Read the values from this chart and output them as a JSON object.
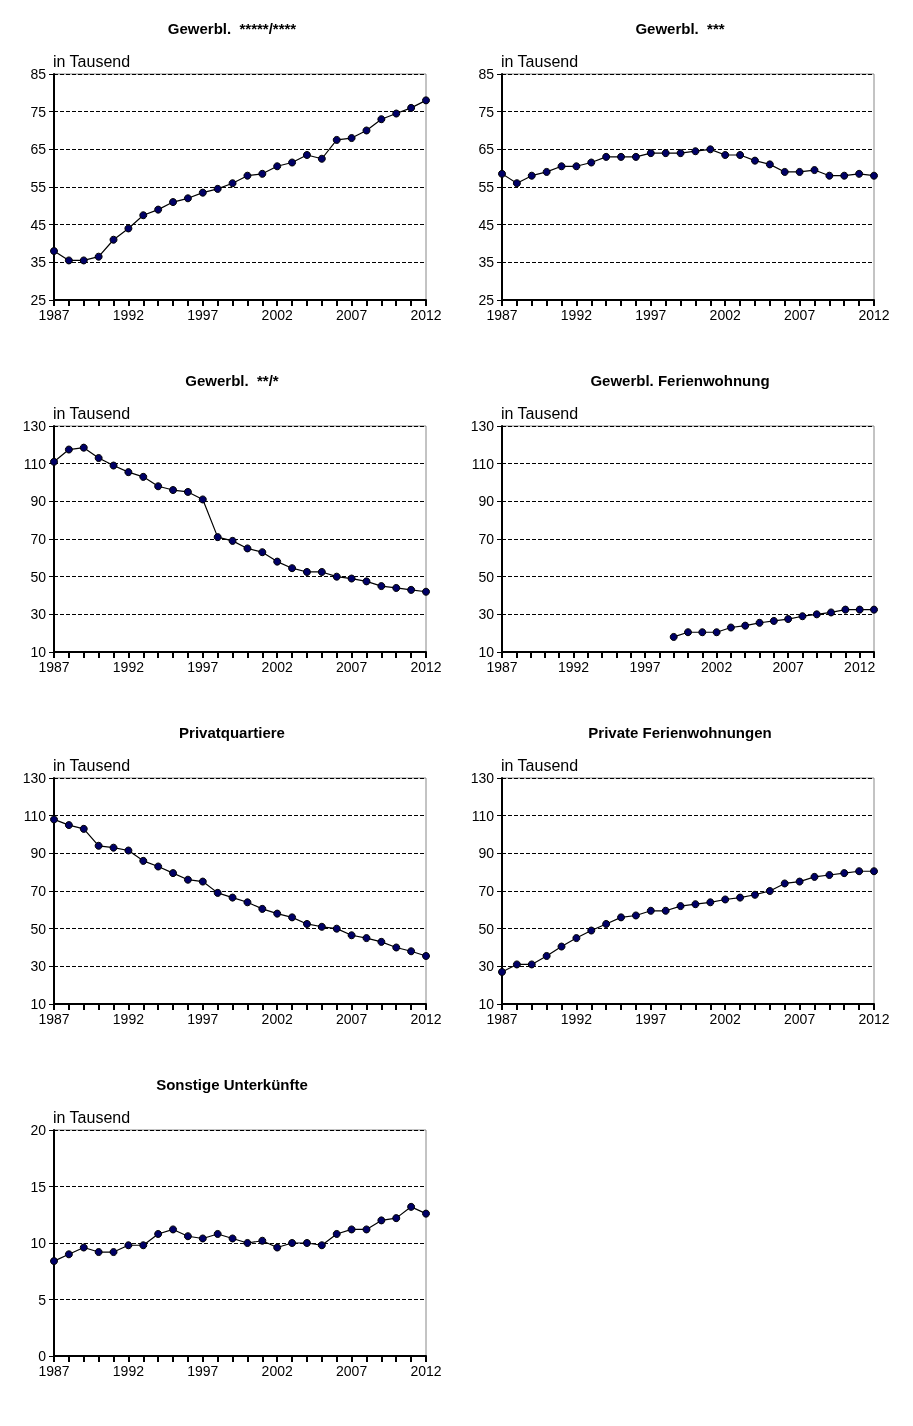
{
  "chart_data": [
    {
      "type": "line",
      "title": "Gewerbl.  *****/****",
      "ylabel": "in Tausend",
      "x": [
        1987,
        1988,
        1989,
        1990,
        1991,
        1992,
        1993,
        1994,
        1995,
        1996,
        1997,
        1998,
        1999,
        2000,
        2001,
        2002,
        2003,
        2004,
        2005,
        2006,
        2007,
        2008,
        2009,
        2010,
        2011,
        2012
      ],
      "values": [
        38,
        35.5,
        35.5,
        36.5,
        41,
        44,
        47.5,
        49,
        51,
        52,
        53.5,
        54.5,
        56,
        58,
        58.5,
        60.5,
        61.5,
        63.5,
        62.5,
        67.5,
        68,
        70,
        73,
        74.5,
        76,
        78
      ],
      "color": "#000066",
      "xlim": [
        1987,
        2012
      ],
      "xticks": [
        1987,
        1992,
        1997,
        2002,
        2007,
        2012
      ],
      "ylim": [
        25,
        85
      ],
      "yticks": [
        25,
        35,
        45,
        55,
        65,
        75,
        85
      ],
      "grid": "y",
      "marker": "circle"
    },
    {
      "type": "line",
      "title": "Gewerbl.  ***",
      "ylabel": "in Tausend",
      "x": [
        1987,
        1988,
        1989,
        1990,
        1991,
        1992,
        1993,
        1994,
        1995,
        1996,
        1997,
        1998,
        1999,
        2000,
        2001,
        2002,
        2003,
        2004,
        2005,
        2006,
        2007,
        2008,
        2009,
        2010,
        2011,
        2012
      ],
      "values": [
        58.5,
        56,
        58,
        59,
        60.5,
        60.5,
        61.5,
        63,
        63,
        63,
        64,
        64,
        64,
        64.5,
        65,
        63.5,
        63.5,
        62,
        61,
        59,
        59,
        59.5,
        58,
        58,
        58.5,
        58
      ],
      "color": "#000066",
      "xlim": [
        1987,
        2012
      ],
      "xticks": [
        1987,
        1992,
        1997,
        2002,
        2007,
        2012
      ],
      "ylim": [
        25,
        85
      ],
      "yticks": [
        25,
        35,
        45,
        55,
        65,
        75,
        85
      ],
      "grid": "y",
      "marker": "circle"
    },
    {
      "type": "line",
      "title": "Gewerbl.  **/*",
      "ylabel": "in Tausend",
      "x": [
        1987,
        1988,
        1989,
        1990,
        1991,
        1992,
        1993,
        1994,
        1995,
        1996,
        1997,
        1998,
        1999,
        2000,
        2001,
        2002,
        2003,
        2004,
        2005,
        2006,
        2007,
        2008,
        2009,
        2010,
        2011,
        2012
      ],
      "values": [
        111,
        117.5,
        118.5,
        113,
        109,
        105.5,
        103,
        98,
        96,
        95,
        91,
        71,
        69,
        65,
        63,
        58,
        54.5,
        52.5,
        52.5,
        50,
        49,
        47.5,
        45,
        44,
        43,
        42
      ],
      "color": "#000066",
      "xlim": [
        1987,
        2012
      ],
      "xticks": [
        1987,
        1992,
        1997,
        2002,
        2007,
        2012
      ],
      "ylim": [
        10,
        130
      ],
      "yticks": [
        10,
        30,
        50,
        70,
        90,
        110,
        130
      ],
      "grid": "y",
      "marker": "circle"
    },
    {
      "type": "line",
      "title": "Gewerbl. Ferienwohnung",
      "ylabel": "in Tausend",
      "x": [
        1999,
        2000,
        2001,
        2002,
        2003,
        2004,
        2005,
        2006,
        2007,
        2008,
        2009,
        2010,
        2011,
        2012,
        2013
      ],
      "values": [
        18,
        20.5,
        20.5,
        20.5,
        23,
        24,
        25.5,
        26.5,
        27.5,
        29,
        30,
        31,
        32.5,
        32.5,
        32.5
      ],
      "color": "#000066",
      "xlim": [
        1987,
        2013
      ],
      "xticks": [
        1987,
        1992,
        1997,
        2002,
        2007,
        2012
      ],
      "ylim": [
        10,
        130
      ],
      "yticks": [
        10,
        30,
        50,
        70,
        90,
        110,
        130
      ],
      "grid": "y",
      "marker": "circle"
    },
    {
      "type": "line",
      "title": "Privatquartiere",
      "ylabel": "in Tausend",
      "x": [
        1987,
        1988,
        1989,
        1990,
        1991,
        1992,
        1993,
        1994,
        1995,
        1996,
        1997,
        1998,
        1999,
        2000,
        2001,
        2002,
        2003,
        2004,
        2005,
        2006,
        2007,
        2008,
        2009,
        2010,
        2011,
        2012
      ],
      "values": [
        108,
        105,
        103,
        94,
        93,
        91.5,
        86,
        83,
        79.5,
        76,
        75,
        69,
        66.5,
        64,
        60.5,
        58,
        56,
        52.5,
        51,
        50,
        46.5,
        45,
        43,
        40,
        38,
        35.5
      ],
      "color": "#000066",
      "xlim": [
        1987,
        2012
      ],
      "xticks": [
        1987,
        1992,
        1997,
        2002,
        2007,
        2012
      ],
      "ylim": [
        10,
        130
      ],
      "yticks": [
        10,
        30,
        50,
        70,
        90,
        110,
        130
      ],
      "grid": "y",
      "marker": "circle"
    },
    {
      "type": "line",
      "title": "Private Ferienwohnungen",
      "ylabel": "in Tausend",
      "x": [
        1987,
        1988,
        1989,
        1990,
        1991,
        1992,
        1993,
        1994,
        1995,
        1996,
        1997,
        1998,
        1999,
        2000,
        2001,
        2002,
        2003,
        2004,
        2005,
        2006,
        2007,
        2008,
        2009,
        2010,
        2011,
        2012
      ],
      "values": [
        27,
        31,
        31,
        35.5,
        40.5,
        45,
        49,
        52.5,
        56,
        57,
        59.5,
        59.5,
        62,
        63,
        64,
        65.5,
        66.5,
        68,
        70,
        74,
        75,
        77.5,
        78.5,
        79.5,
        80.5,
        80.5
      ],
      "color": "#000066",
      "xlim": [
        1987,
        2012
      ],
      "xticks": [
        1987,
        1992,
        1997,
        2002,
        2007,
        2012
      ],
      "ylim": [
        10,
        130
      ],
      "yticks": [
        10,
        30,
        50,
        70,
        90,
        110,
        130
      ],
      "grid": "y",
      "marker": "circle"
    },
    {
      "type": "line",
      "title": "Sonstige Unterkünfte",
      "ylabel": "in Tausend",
      "x": [
        1987,
        1988,
        1989,
        1990,
        1991,
        1992,
        1993,
        1994,
        1995,
        1996,
        1997,
        1998,
        1999,
        2000,
        2001,
        2002,
        2003,
        2004,
        2005,
        2006,
        2007,
        2008,
        2009,
        2010,
        2011,
        2012
      ],
      "values": [
        8.4,
        9.0,
        9.6,
        9.2,
        9.2,
        9.8,
        9.8,
        10.8,
        11.2,
        10.6,
        10.4,
        10.8,
        10.4,
        10.0,
        10.2,
        9.6,
        10.0,
        10.0,
        9.8,
        10.8,
        11.2,
        11.2,
        12.0,
        12.2,
        13.2,
        12.6
      ],
      "color": "#000066",
      "xlim": [
        1987,
        2012
      ],
      "xticks": [
        1987,
        1992,
        1997,
        2002,
        2007,
        2012
      ],
      "ylim": [
        0,
        20
      ],
      "yticks": [
        0,
        5,
        10,
        15,
        20
      ],
      "grid": "y",
      "marker": "circle"
    }
  ]
}
